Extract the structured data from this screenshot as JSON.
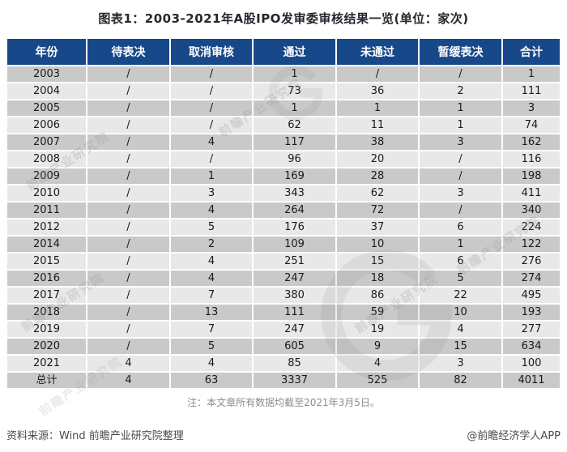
{
  "chart_data": {
    "type": "table",
    "title": "图表1：2003-2021年A股IPO发审委审核结果一览(单位：家次)",
    "columns": [
      "年份",
      "待表决",
      "取消审核",
      "通过",
      "未通过",
      "暂缓表决",
      "合计"
    ],
    "rows": [
      [
        "2003",
        "/",
        "/",
        "1",
        "/",
        "/",
        "1"
      ],
      [
        "2004",
        "/",
        "/",
        "73",
        "36",
        "2",
        "111"
      ],
      [
        "2005",
        "/",
        "/",
        "1",
        "1",
        "1",
        "3"
      ],
      [
        "2006",
        "/",
        "/",
        "62",
        "11",
        "1",
        "74"
      ],
      [
        "2007",
        "/",
        "4",
        "117",
        "38",
        "3",
        "162"
      ],
      [
        "2008",
        "/",
        "/",
        "96",
        "20",
        "/",
        "116"
      ],
      [
        "2009",
        "/",
        "1",
        "169",
        "28",
        "/",
        "198"
      ],
      [
        "2010",
        "/",
        "3",
        "343",
        "62",
        "3",
        "411"
      ],
      [
        "2011",
        "/",
        "4",
        "264",
        "72",
        "/",
        "340"
      ],
      [
        "2012",
        "/",
        "5",
        "176",
        "37",
        "6",
        "224"
      ],
      [
        "2014",
        "/",
        "2",
        "109",
        "10",
        "1",
        "122"
      ],
      [
        "2015",
        "/",
        "4",
        "251",
        "15",
        "6",
        "276"
      ],
      [
        "2016",
        "/",
        "4",
        "247",
        "18",
        "5",
        "274"
      ],
      [
        "2017",
        "/",
        "7",
        "380",
        "86",
        "22",
        "495"
      ],
      [
        "2018",
        "/",
        "13",
        "111",
        "59",
        "10",
        "193"
      ],
      [
        "2019",
        "/",
        "7",
        "247",
        "19",
        "4",
        "277"
      ],
      [
        "2020",
        "/",
        "5",
        "605",
        "9",
        "15",
        "634"
      ],
      [
        "2021",
        "4",
        "4",
        "85",
        "4",
        "3",
        "100"
      ],
      [
        "总计",
        "4",
        "63",
        "3337",
        "525",
        "82",
        "4011"
      ]
    ],
    "layout": {
      "grid": "striped-rows",
      "header_position": "top"
    }
  },
  "note": "注：本文章所有数据均截至2021年3月5日。",
  "footer": {
    "source": "资料来源：Wind 前瞻产业研究院整理",
    "credit": "@前瞻经济学人APP"
  },
  "watermark_text": "前瞻产业研究院",
  "colors": {
    "header_bg": "#17498A",
    "header_text": "#FFFFFF",
    "row_dark": "#C9C9C9",
    "row_light": "#E8E8E8",
    "title_text": "#23272E",
    "note_text": "#8C8C8C"
  }
}
